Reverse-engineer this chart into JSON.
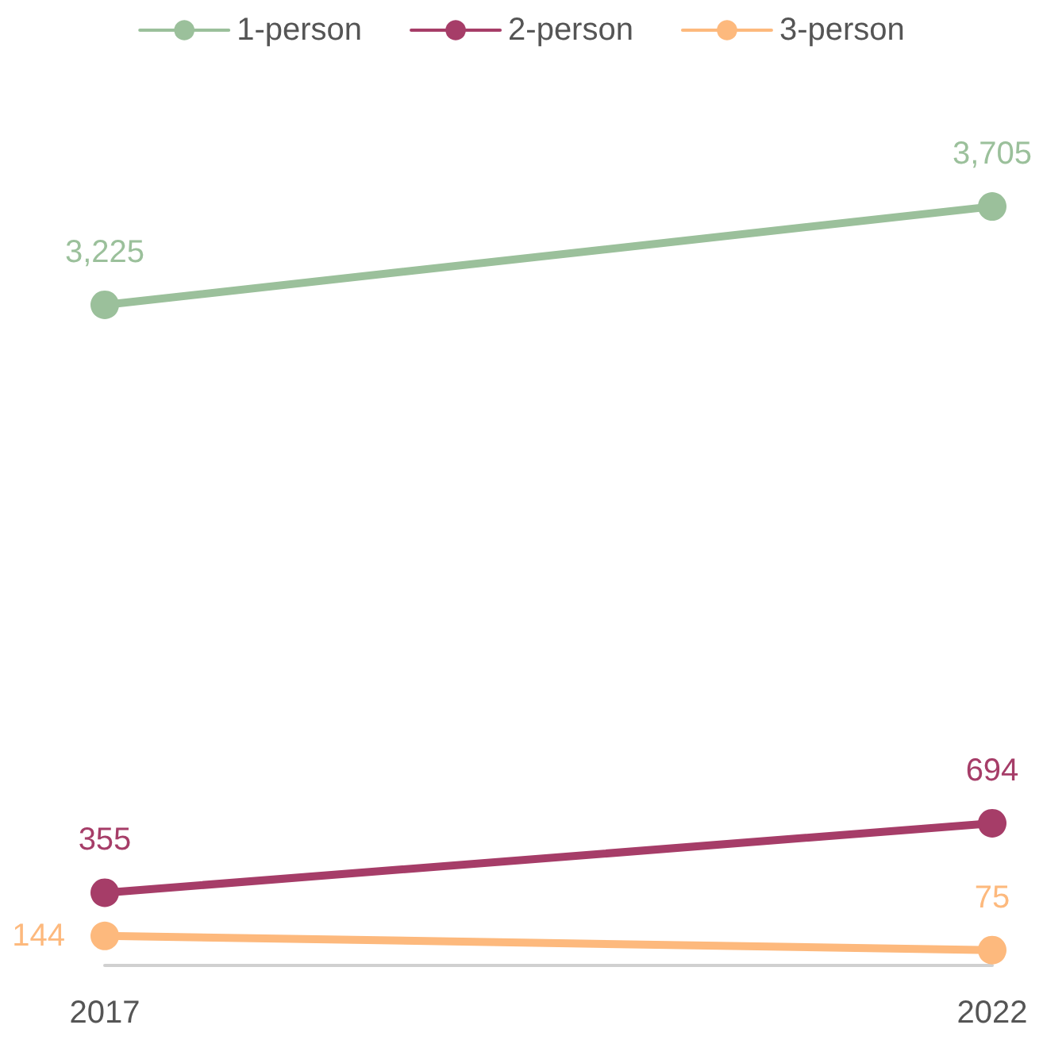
{
  "chart_data": {
    "type": "line",
    "categories": [
      "2017",
      "2022"
    ],
    "series": [
      {
        "name": "1-person",
        "color": "#9bc09b",
        "values": [
          3225,
          3705
        ],
        "value_labels": [
          "3,225",
          "3,705"
        ]
      },
      {
        "name": "2-person",
        "color": "#a63d68",
        "values": [
          355,
          694
        ],
        "value_labels": [
          "355",
          "694"
        ]
      },
      {
        "name": "3-person",
        "color": "#fdb97d",
        "values": [
          144,
          75
        ],
        "value_labels": [
          "144",
          "75"
        ]
      }
    ],
    "legend": "top",
    "marker": "circle",
    "line_style": "solid",
    "grid": false
  }
}
